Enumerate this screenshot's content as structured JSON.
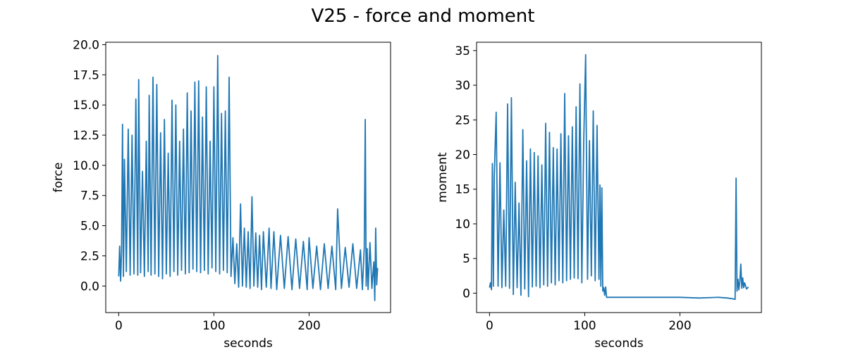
{
  "figure": {
    "title": "V25 - force and moment"
  },
  "chart_data": [
    {
      "type": "line",
      "xlabel": "seconds",
      "ylabel": "force",
      "xlim": [
        -13.6,
        285.6
      ],
      "ylim": [
        -2.2,
        20.2
      ],
      "xticks": [
        0,
        100,
        200
      ],
      "yticks": [
        0.0,
        2.5,
        5.0,
        7.5,
        10.0,
        12.5,
        15.0,
        17.5,
        20.0
      ],
      "ytick_labels": [
        "0.0",
        "2.5",
        "5.0",
        "7.5",
        "10.0",
        "12.5",
        "15.0",
        "17.5",
        "20.0"
      ],
      "line_color": "#1f77b4",
      "series": [
        {
          "x": [
            0,
            1,
            2,
            3,
            4,
            5,
            6,
            8,
            10,
            12,
            14,
            16,
            18,
            20,
            21,
            23,
            25,
            27,
            29,
            31,
            32,
            34,
            36,
            38,
            40,
            42,
            44,
            46,
            48,
            50,
            52,
            54,
            56,
            58,
            60,
            62,
            64,
            66,
            68,
            70,
            72,
            74,
            76,
            78,
            80,
            82,
            84,
            86,
            88,
            90,
            92,
            94,
            96,
            98,
            100,
            102,
            104,
            106,
            108,
            110,
            112,
            114,
            116,
            118,
            120,
            122,
            124,
            126,
            128,
            130,
            132,
            134,
            136,
            138,
            140,
            142,
            144,
            146,
            148,
            150,
            152,
            155,
            158,
            160,
            163,
            166,
            170,
            174,
            178,
            182,
            186,
            190,
            194,
            198,
            200,
            204,
            208,
            212,
            216,
            220,
            224,
            228,
            230,
            234,
            238,
            242,
            246,
            250,
            254,
            256,
            258,
            259,
            260,
            261,
            262,
            264,
            266,
            268,
            269,
            270,
            271,
            272
          ],
          "y": [
            0.8,
            3.3,
            0.4,
            2.8,
            13.4,
            0.8,
            10.5,
            1.2,
            13.0,
            0.9,
            12.5,
            1.0,
            15.5,
            0.9,
            17.1,
            1.1,
            9.5,
            0.8,
            12.0,
            1.2,
            15.8,
            0.9,
            17.3,
            1.0,
            16.7,
            0.8,
            12.7,
            0.6,
            13.8,
            1.0,
            11.0,
            0.8,
            15.4,
            1.2,
            15.0,
            0.9,
            12.0,
            1.3,
            13.0,
            1.0,
            16.0,
            1.1,
            14.5,
            1.4,
            16.9,
            1.2,
            17.0,
            1.1,
            14.0,
            1.3,
            16.5,
            1.0,
            12.0,
            1.5,
            16.5,
            1.2,
            19.1,
            1.0,
            14.3,
            1.3,
            14.5,
            1.1,
            17.3,
            0.8,
            4.0,
            0.2,
            3.5,
            -0.1,
            6.8,
            0.0,
            4.8,
            -0.1,
            4.5,
            -0.2,
            7.4,
            0.0,
            4.4,
            -0.1,
            4.2,
            -0.3,
            4.5,
            -0.1,
            4.8,
            -0.2,
            4.5,
            -0.3,
            4.2,
            -0.2,
            4.1,
            -0.3,
            3.9,
            -0.2,
            3.7,
            -0.3,
            4.0,
            -0.2,
            3.3,
            -0.3,
            3.5,
            -0.2,
            3.3,
            -0.3,
            6.4,
            -0.2,
            3.2,
            -0.1,
            3.5,
            -0.2,
            3.0,
            -0.3,
            3.2,
            13.8,
            0.0,
            3.1,
            -0.3,
            3.6,
            -0.2,
            2.0,
            -1.2,
            4.8,
            0.1,
            1.5
          ]
        }
      ]
    },
    {
      "type": "line",
      "xlabel": "seconds",
      "ylabel": "moment",
      "xlim": [
        -13.6,
        285.6
      ],
      "ylim": [
        -2.8,
        36.2
      ],
      "xticks": [
        0,
        100,
        200
      ],
      "yticks": [
        0,
        5,
        10,
        15,
        20,
        25,
        30,
        35
      ],
      "ytick_labels": [
        "0",
        "5",
        "10",
        "15",
        "20",
        "25",
        "30",
        "35"
      ],
      "line_color": "#1f77b4",
      "series": [
        {
          "x": [
            0,
            1,
            2,
            3,
            4,
            5,
            7,
            9,
            11,
            13,
            15,
            17,
            19,
            21,
            23,
            25,
            27,
            29,
            31,
            33,
            35,
            37,
            39,
            41,
            43,
            45,
            47,
            49,
            51,
            53,
            55,
            57,
            59,
            61,
            63,
            65,
            67,
            69,
            71,
            73,
            75,
            77,
            79,
            81,
            83,
            85,
            87,
            89,
            91,
            93,
            95,
            97,
            99,
            101,
            103,
            105,
            107,
            109,
            111,
            113,
            115,
            116,
            117,
            118,
            119,
            120,
            121,
            122,
            123,
            125,
            130,
            140,
            160,
            180,
            200,
            220,
            240,
            250,
            255,
            258,
            259,
            260,
            261,
            262,
            263,
            264,
            265,
            266,
            267,
            268,
            270,
            272
          ],
          "y": [
            0.8,
            1.5,
            0.5,
            18.7,
            1.0,
            16.9,
            26.1,
            1.0,
            18.8,
            0.8,
            12.0,
            1.0,
            27.3,
            0.7,
            28.2,
            -0.2,
            16.0,
            0.8,
            13.0,
            -0.3,
            23.6,
            0.6,
            19.1,
            -0.5,
            20.8,
            0.9,
            20.3,
            1.0,
            19.8,
            0.8,
            18.5,
            1.2,
            24.5,
            1.0,
            23.2,
            1.5,
            21.0,
            1.2,
            20.8,
            1.8,
            23.0,
            1.5,
            28.8,
            1.8,
            22.7,
            2.0,
            24.0,
            2.2,
            26.9,
            2.1,
            30.2,
            1.5,
            22.0,
            34.4,
            2.0,
            22.0,
            2.5,
            26.3,
            1.8,
            24.2,
            2.0,
            15.6,
            1.0,
            15.2,
            0.3,
            0.8,
            -0.3,
            0.9,
            -0.6,
            -0.6,
            -0.6,
            -0.6,
            -0.6,
            -0.6,
            -0.6,
            -0.7,
            -0.6,
            -0.7,
            -0.8,
            -0.9,
            16.6,
            0.3,
            2.0,
            0.5,
            1.8,
            4.2,
            0.7,
            2.2,
            0.8,
            1.5,
            0.6,
            0.9
          ]
        }
      ]
    }
  ]
}
